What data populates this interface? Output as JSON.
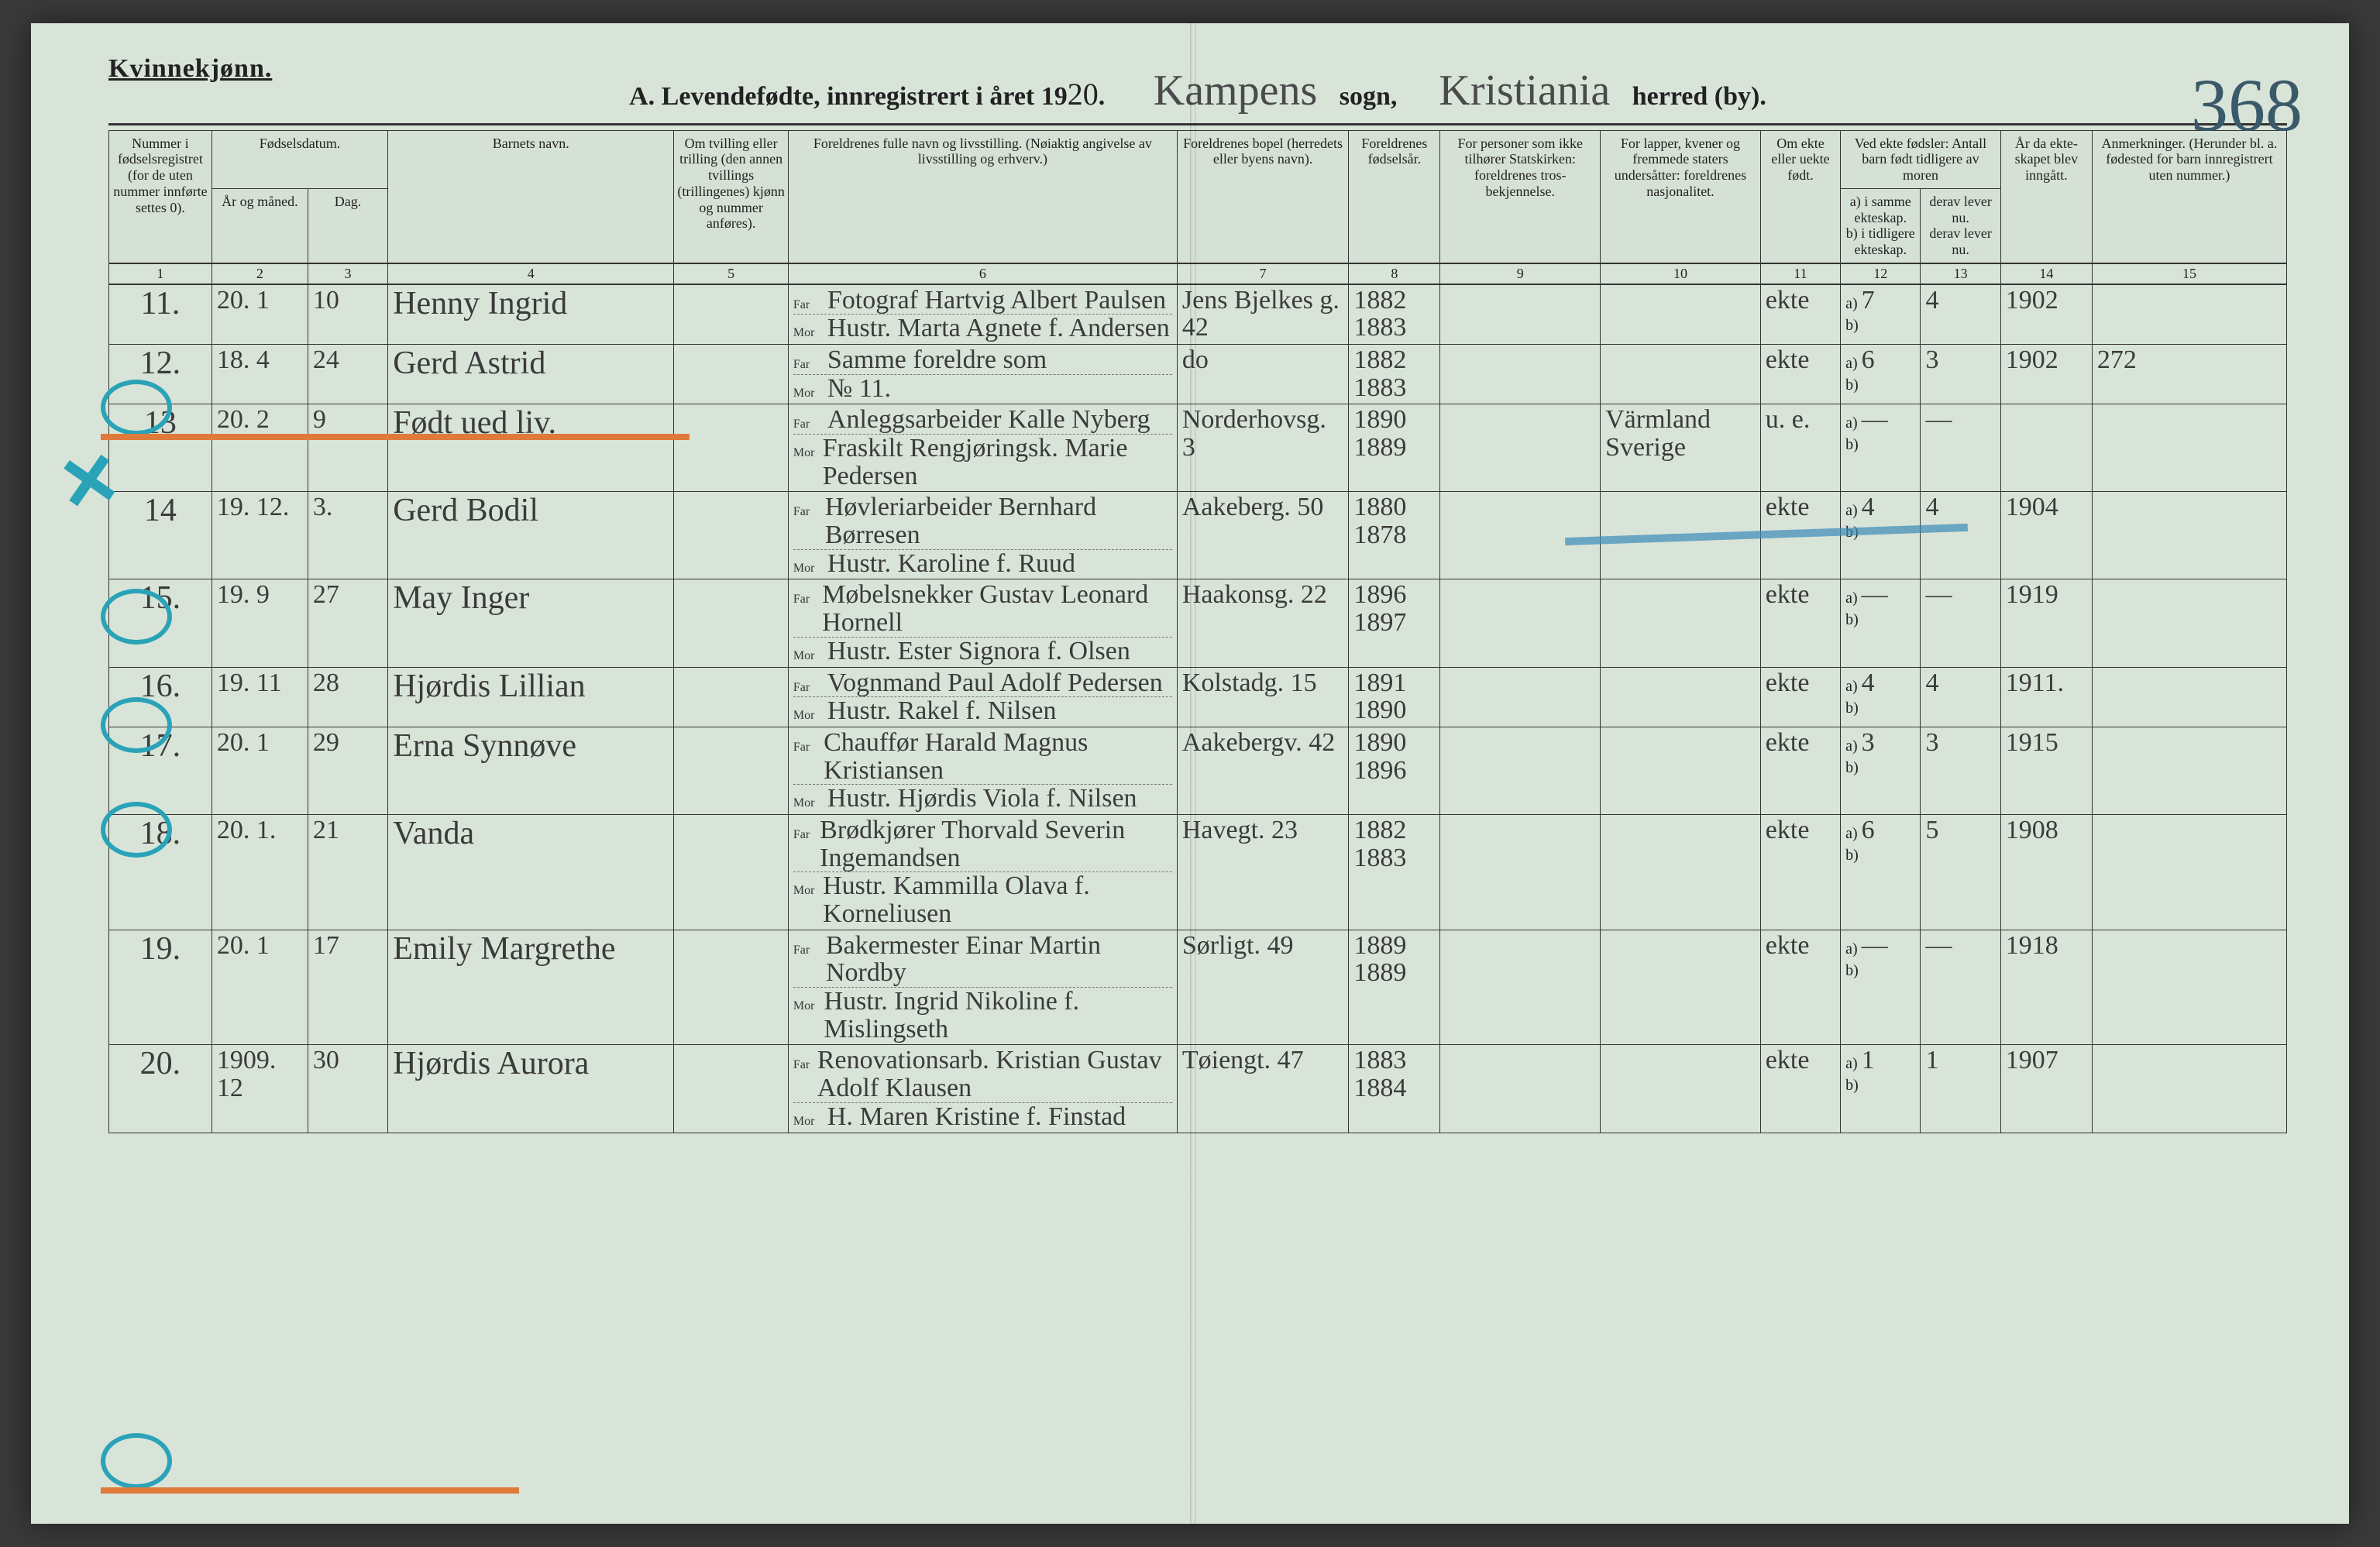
{
  "header": {
    "gender": "Kvinnekjønn.",
    "title_prefix": "A.  Levendefødte, innregistrert i året 19",
    "year_hand": "20",
    "sogn_hand": "Kampens",
    "sogn_label": "sogn,",
    "herred_hand": "Kristiania",
    "herred_label": "herred (by).",
    "page_number": "368"
  },
  "columns": {
    "h1": "Nummer i fødsels­registret (for de uten nummer inn­førte settes 0).",
    "h2_top": "Fødselsdatum.",
    "h2a": "År og måned.",
    "h2b": "Dag.",
    "h4": "Barnets navn.",
    "h5": "Om tvilling eller trilling (den annen tvillings (trillingenes) kjønn og nummer anføres).",
    "h6": "Foreldrenes fulle navn og livsstilling. (Nøiaktig angivelse av livsstilling og erhverv.)",
    "h7": "Foreldrenes bopel (herredets eller byens navn).",
    "h8": "For­eldrenes fødsels­år.",
    "h9": "For personer som ikke tilhører Statskirken: foreldrenes tros­bekjennelse.",
    "h10": "For lapper, kvener og fremmede staters undersåtter: foreldrenes nasjonalitet.",
    "h11": "Om ekte eller uekte født.",
    "h12_top": "Ved ekte fødsler: Antall barn født tid­ligere av moren",
    "h12a": "a) i samme ekteskap.",
    "h12b": "b) i tidligere ekteskap.",
    "h13a": "derav lever nu.",
    "h13b": "derav lever nu.",
    "h14": "År da ekte­skapet blev inn­gått.",
    "h15": "Anmerkninger. (Herunder bl. a. fødested for barn innregistrert uten nummer.)",
    "far": "Far",
    "mor": "Mor",
    "colnums": [
      "1",
      "2",
      "3",
      "4",
      "5",
      "6",
      "7",
      "8",
      "9",
      "10",
      "11",
      "12",
      "13",
      "14",
      "15"
    ]
  },
  "rows": [
    {
      "num": "11.",
      "date": "20. 1",
      "day": "10",
      "child": "Henny Ingrid",
      "twin": "",
      "far": "Fotograf  Hartvig Albert Paulsen",
      "mor": "Hustr. Marta Agnete f. Andersen",
      "bopel": "Jens Bjelkes g. 42",
      "far_year": "1882",
      "mor_year": "1883",
      "rel": "",
      "nat": "",
      "ekte": "ekte",
      "a": "7",
      "a2": "4",
      "marr": "1902",
      "note": ""
    },
    {
      "num": "12.",
      "date": "18. 4",
      "day": "24",
      "child": "Gerd Astrid",
      "twin": "",
      "far": "Samme foreldre som",
      "mor": "№ 11.",
      "bopel": "do",
      "far_year": "1882",
      "mor_year": "1883",
      "rel": "",
      "nat": "",
      "ekte": "ekte",
      "a": "6",
      "a2": "3",
      "marr": "1902",
      "note": "272"
    },
    {
      "num": "13",
      "date": "20. 2",
      "day": "9",
      "child": "Født ued liv.",
      "twin": "",
      "far": "Anleggsarbeider  Kalle Nyberg",
      "mor": "Fraskilt Rengjøringsk. Marie Pedersen",
      "bopel": "Norderhovsg. 3",
      "far_year": "1890",
      "mor_year": "1889",
      "rel": "",
      "nat": "Värmland Sverige",
      "ekte": "u. e.",
      "a": "—",
      "a2": "—",
      "marr": "",
      "note": ""
    },
    {
      "num": "14",
      "date": "19. 12.",
      "day": "3.",
      "child": "Gerd Bodil",
      "twin": "",
      "far": "Høvleriarbeider  Bernhard Børresen",
      "mor": "Hustr. Karoline f. Ruud",
      "bopel": "Aakeberg. 50",
      "far_year": "1880",
      "mor_year": "1878",
      "rel": "",
      "nat": "",
      "ekte": "ekte",
      "a": "4",
      "a2": "4",
      "marr": "1904",
      "note": ""
    },
    {
      "num": "15.",
      "date": "19. 9",
      "day": "27",
      "child": "May Inger",
      "twin": "",
      "far": "Møbelsnekker  Gustav Leonard Hornell",
      "mor": "Hustr. Ester Signora f. Olsen",
      "bopel": "Haakonsg. 22",
      "far_year": "1896",
      "mor_year": "1897",
      "rel": "",
      "nat": "",
      "ekte": "ekte",
      "a": "—",
      "a2": "—",
      "marr": "1919",
      "note": ""
    },
    {
      "num": "16.",
      "date": "19. 11",
      "day": "28",
      "child": "Hjørdis Lillian",
      "twin": "",
      "far": "Vognmand  Paul Adolf Pedersen",
      "mor": "Hustr. Rakel f. Nilsen",
      "bopel": "Kolstadg. 15",
      "far_year": "1891",
      "mor_year": "1890",
      "rel": "",
      "nat": "",
      "ekte": "ekte",
      "a": "4",
      "a2": "4",
      "marr": "1911.",
      "note": ""
    },
    {
      "num": "17.",
      "date": "20. 1",
      "day": "29",
      "child": "Erna Synnøve",
      "twin": "",
      "far": "Chauffør  Harald Magnus Kristiansen",
      "mor": "Hustr. Hjørdis Viola f. Nilsen",
      "bopel": "Aakebergv. 42",
      "far_year": "1890",
      "mor_year": "1896",
      "rel": "",
      "nat": "",
      "ekte": "ekte",
      "a": "3",
      "a2": "3",
      "marr": "1915",
      "note": ""
    },
    {
      "num": "18.",
      "date": "20. 1.",
      "day": "21",
      "child": "Vanda",
      "twin": "",
      "far": "Brødkjører  Thorvald Severin Ingemandsen",
      "mor": "Hustr. Kammilla Olava f. Korneliusen",
      "bopel": "Havegt. 23",
      "far_year": "1882",
      "mor_year": "1883",
      "rel": "",
      "nat": "",
      "ekte": "ekte",
      "a": "6",
      "a2": "5",
      "marr": "1908",
      "note": ""
    },
    {
      "num": "19.",
      "date": "20. 1",
      "day": "17",
      "child": "Emily Margrethe",
      "twin": "",
      "far": "Bakermester  Einar Martin Nordby",
      "mor": "Hustr. Ingrid Nikoline f. Mislingseth",
      "bopel": "Sørligt. 49",
      "far_year": "1889",
      "mor_year": "1889",
      "rel": "",
      "nat": "",
      "ekte": "ekte",
      "a": "—",
      "a2": "—",
      "marr": "1918",
      "note": ""
    },
    {
      "num": "20.",
      "date": "1909. 12",
      "day": "30",
      "child": "Hjørdis Aurora",
      "twin": "",
      "far": "Renovationsarb.  Kristian Gustav Adolf Klausen",
      "mor": "H. Maren Kristine f. Finstad",
      "bopel": "Tøiengt. 47",
      "far_year": "1883",
      "mor_year": "1884",
      "rel": "",
      "nat": "",
      "ekte": "ekte",
      "a": "1",
      "a2": "1",
      "marr": "1907",
      "note": ""
    }
  ],
  "style": {
    "paper_bg": "#d9e4d9",
    "ink": "#3b3b3b",
    "blue_pencil": "#2aa3b8",
    "orange_pencil": "#e07a3a"
  }
}
